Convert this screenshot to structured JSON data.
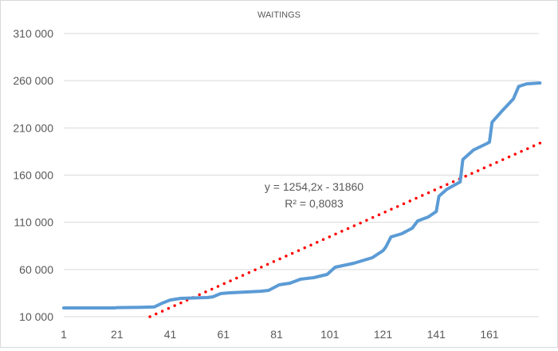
{
  "chart_data": {
    "type": "line",
    "title": "WAITINGS",
    "xlabel": "",
    "ylabel": "",
    "xlim": [
      1,
      180
    ],
    "ylim": [
      10000,
      310000
    ],
    "grid": true,
    "y_ticks": [
      10000,
      60000,
      110000,
      160000,
      210000,
      260000,
      310000
    ],
    "y_tick_labels": [
      "10 000",
      "60 000",
      "110 000",
      "160 000",
      "210 000",
      "260 000",
      "310 000"
    ],
    "x_ticks": [
      1,
      21,
      41,
      61,
      81,
      101,
      121,
      141,
      161
    ],
    "x_tick_labels": [
      "1",
      "21",
      "41",
      "61",
      "81",
      "101",
      "121",
      "141",
      "161"
    ],
    "series": [
      {
        "name": "Waitings",
        "color": "#5b9bd5",
        "points": [
          [
            1,
            19300
          ],
          [
            20,
            19300
          ],
          [
            21,
            19600
          ],
          [
            30,
            20000
          ],
          [
            35,
            20300
          ],
          [
            38,
            24400
          ],
          [
            41,
            27700
          ],
          [
            45,
            29400
          ],
          [
            55,
            30300
          ],
          [
            57,
            31000
          ],
          [
            60,
            34500
          ],
          [
            63,
            35300
          ],
          [
            75,
            37000
          ],
          [
            78,
            37900
          ],
          [
            82,
            43800
          ],
          [
            86,
            45500
          ],
          [
            90,
            49700
          ],
          [
            95,
            51400
          ],
          [
            100,
            54800
          ],
          [
            103,
            62400
          ],
          [
            110,
            66600
          ],
          [
            117,
            72500
          ],
          [
            121,
            80000
          ],
          [
            122,
            83500
          ],
          [
            124,
            94500
          ],
          [
            128,
            97900
          ],
          [
            132,
            103800
          ],
          [
            134,
            111400
          ],
          [
            138,
            115600
          ],
          [
            141,
            121500
          ],
          [
            142,
            137600
          ],
          [
            145,
            145000
          ],
          [
            150,
            152800
          ],
          [
            151,
            176500
          ],
          [
            155,
            186600
          ],
          [
            160,
            193400
          ],
          [
            161,
            195000
          ],
          [
            162,
            216000
          ],
          [
            166,
            228800
          ],
          [
            170,
            240700
          ],
          [
            172,
            254000
          ],
          [
            175,
            256700
          ],
          [
            180,
            257600
          ]
        ]
      }
    ],
    "trendline": {
      "type": "linear",
      "color": "#ff0000",
      "slope": 1254.2,
      "intercept": -31860,
      "equation": "y = 1254,2x - 31860",
      "r_squared": "R² = 0,8083"
    }
  }
}
